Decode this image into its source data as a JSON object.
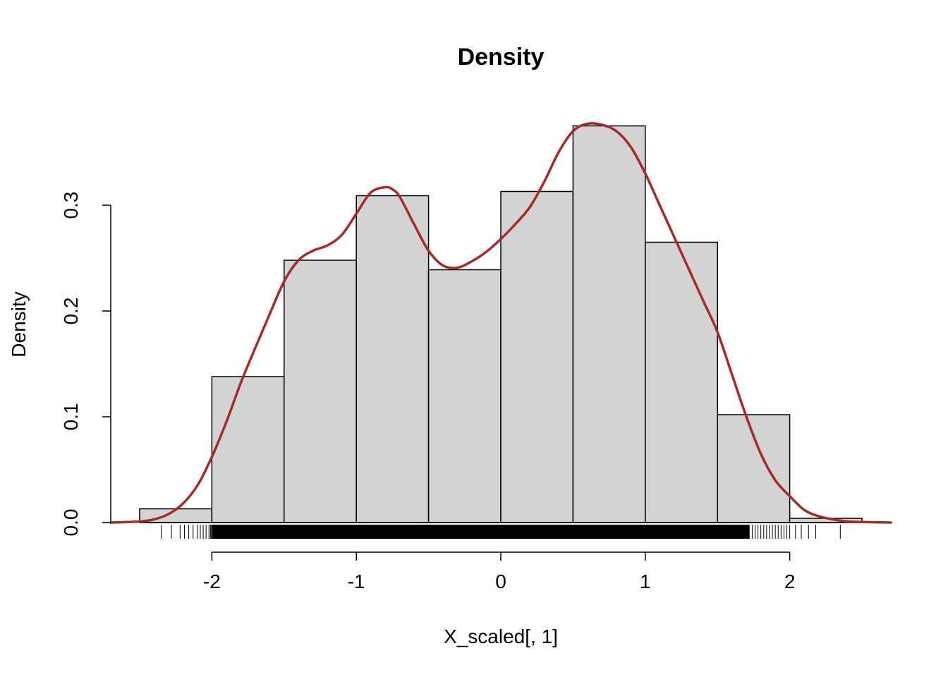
{
  "chart_data": {
    "type": "bar",
    "title": "Density",
    "xlabel": "X_scaled[, 1]",
    "ylabel": "Density",
    "xlim": [
      -2.7,
      2.7
    ],
    "ylim": [
      0,
      0.38
    ],
    "x_ticks": [
      -2,
      -1,
      0,
      1,
      2
    ],
    "x_tick_labels": [
      "-2",
      "-1",
      "0",
      "1",
      "2"
    ],
    "y_ticks": [
      0.0,
      0.1,
      0.2,
      0.3
    ],
    "y_tick_labels": [
      "0.0",
      "0.1",
      "0.2",
      "0.3"
    ],
    "grid": false,
    "histogram": {
      "bin_edges": [
        -2.5,
        -2.0,
        -1.5,
        -1.0,
        -0.5,
        0.0,
        0.5,
        1.0,
        1.5,
        2.0,
        2.5
      ],
      "values": [
        0.013,
        0.138,
        0.248,
        0.309,
        0.239,
        0.313,
        0.375,
        0.265,
        0.102,
        0.004
      ],
      "fill_color": "#d3d3d3"
    },
    "density_curve": {
      "color": "#a52a2a",
      "x": [
        -2.7,
        -2.5,
        -2.4,
        -2.3,
        -2.2,
        -2.1,
        -2.0,
        -1.9,
        -1.8,
        -1.7,
        -1.6,
        -1.5,
        -1.4,
        -1.3,
        -1.2,
        -1.1,
        -1.0,
        -0.9,
        -0.8,
        -0.75,
        -0.7,
        -0.6,
        -0.5,
        -0.4,
        -0.3,
        -0.2,
        -0.1,
        0.0,
        0.1,
        0.2,
        0.3,
        0.4,
        0.5,
        0.6,
        0.7,
        0.8,
        0.9,
        1.0,
        1.1,
        1.2,
        1.3,
        1.4,
        1.5,
        1.6,
        1.7,
        1.8,
        1.9,
        2.0,
        2.1,
        2.2,
        2.3,
        2.4,
        2.5,
        2.7
      ],
      "y": [
        0.0,
        0.001,
        0.003,
        0.008,
        0.018,
        0.035,
        0.062,
        0.095,
        0.132,
        0.165,
        0.197,
        0.228,
        0.248,
        0.257,
        0.262,
        0.272,
        0.292,
        0.312,
        0.317,
        0.315,
        0.308,
        0.282,
        0.257,
        0.243,
        0.241,
        0.247,
        0.256,
        0.268,
        0.282,
        0.298,
        0.322,
        0.35,
        0.37,
        0.377,
        0.376,
        0.37,
        0.355,
        0.33,
        0.3,
        0.27,
        0.24,
        0.21,
        0.18,
        0.14,
        0.1,
        0.065,
        0.04,
        0.025,
        0.012,
        0.006,
        0.003,
        0.001,
        0.0005,
        0.0
      ]
    },
    "rug": {
      "x": [
        -2.35,
        -2.28,
        -2.22,
        -2.19,
        -2.16,
        -2.13,
        -2.1,
        -2.08,
        -2.06,
        -2.04,
        -2.02,
        -2.01,
        -2.005,
        1.72,
        1.74,
        1.76,
        1.78,
        1.8,
        1.82,
        1.84,
        1.86,
        1.88,
        1.9,
        1.92,
        1.94,
        1.96,
        1.98,
        2.0,
        2.04,
        2.08,
        2.13,
        2.18,
        2.35
      ]
    }
  }
}
